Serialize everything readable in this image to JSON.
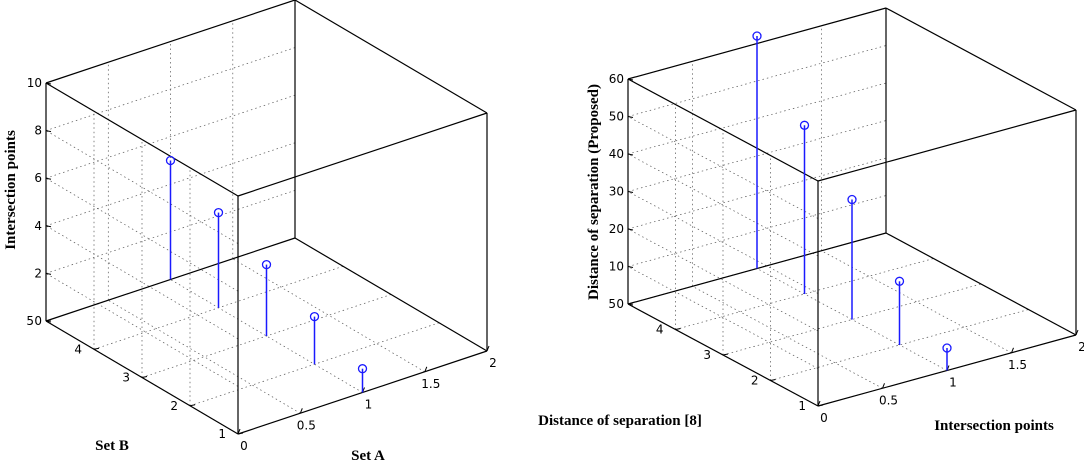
{
  "chart_data": [
    {
      "type": "stem3d",
      "xlabel": "Set A",
      "ylabel": "Set B",
      "zlabel": "Intersection points",
      "xlim": [
        0,
        2
      ],
      "ylim": [
        1,
        5
      ],
      "zlim": [
        0,
        10
      ],
      "x_ticks": [
        "0",
        "0.5",
        "1",
        "1.5",
        "2"
      ],
      "y_ticks": [
        "1",
        "2",
        "3",
        "4",
        "5"
      ],
      "z_ticks": [
        "0",
        "2",
        "4",
        "6",
        "8",
        "10"
      ],
      "grid": true,
      "points": [
        {
          "x": 1,
          "y": 1,
          "z": 1
        },
        {
          "x": 1,
          "y": 2,
          "z": 2
        },
        {
          "x": 1,
          "y": 3,
          "z": 3
        },
        {
          "x": 1,
          "y": 4,
          "z": 4
        },
        {
          "x": 1,
          "y": 5,
          "z": 5
        }
      ]
    },
    {
      "type": "stem3d",
      "xlabel": "Intersection points",
      "ylabel": "Distance of separation [8]",
      "zlabel": "Distance of separation (Proposed)",
      "xlim": [
        0,
        2
      ],
      "ylim": [
        1,
        5
      ],
      "zlim": [
        0,
        60
      ],
      "x_ticks": [
        "0",
        "0.5",
        "1",
        "1.5",
        "2"
      ],
      "y_ticks": [
        "1",
        "2",
        "3",
        "4",
        "5"
      ],
      "z_ticks": [
        "0",
        "10",
        "20",
        "30",
        "40",
        "50",
        "60"
      ],
      "grid": true,
      "points": [
        {
          "x": 1,
          "y": 1,
          "z": 6
        },
        {
          "x": 1,
          "y": 2,
          "z": 17
        },
        {
          "x": 1,
          "y": 3,
          "z": 32
        },
        {
          "x": 1,
          "y": 4,
          "z": 45
        },
        {
          "x": 1,
          "y": 5,
          "z": 62
        }
      ]
    }
  ]
}
